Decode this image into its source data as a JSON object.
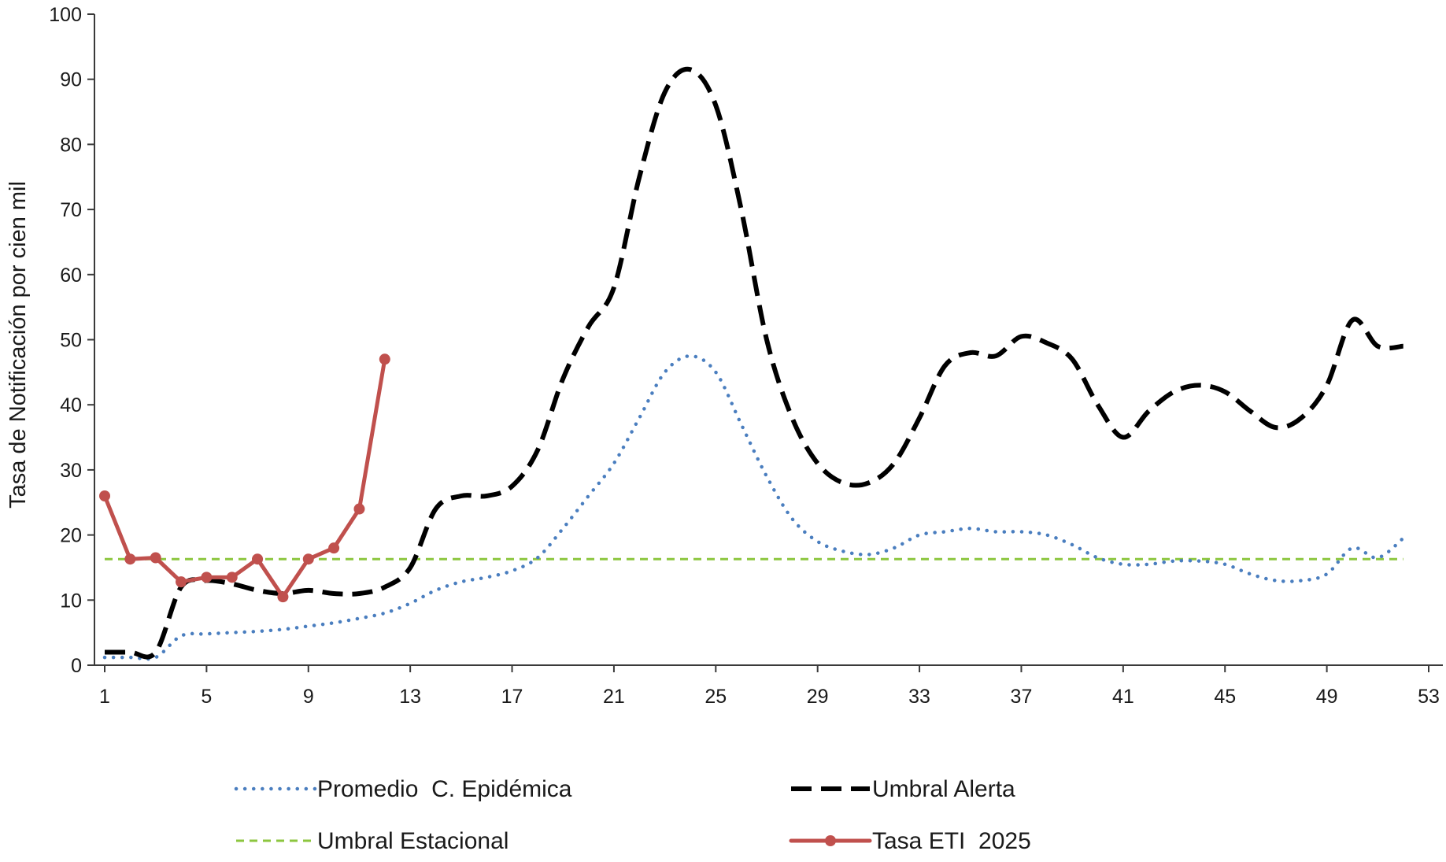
{
  "chart_data": {
    "type": "line",
    "title": "",
    "xlabel": "",
    "ylabel": "Tasa de Notificación por cien mil",
    "ylim": [
      0,
      100
    ],
    "xlim": [
      1,
      53
    ],
    "yticks": [
      0,
      10,
      20,
      30,
      40,
      50,
      60,
      70,
      80,
      90,
      100
    ],
    "xticks": [
      1,
      5,
      9,
      13,
      17,
      21,
      25,
      29,
      33,
      37,
      41,
      45,
      49,
      53
    ],
    "grid": false,
    "legend_position": "bottom",
    "series": [
      {
        "name": "Promedio  C. Epidémica",
        "color": "#4a7ebf",
        "style": "dotted",
        "x": [
          1,
          2,
          3,
          4,
          5,
          6,
          7,
          8,
          9,
          10,
          11,
          12,
          13,
          14,
          15,
          16,
          17,
          18,
          19,
          20,
          21,
          22,
          23,
          24,
          25,
          26,
          27,
          28,
          29,
          30,
          31,
          32,
          33,
          34,
          35,
          36,
          37,
          38,
          39,
          40,
          41,
          42,
          43,
          44,
          45,
          46,
          47,
          48,
          49,
          50,
          51,
          52
        ],
        "y": [
          1.2,
          1.2,
          1.2,
          4.5,
          4.8,
          5,
          5.2,
          5.5,
          6,
          6.5,
          7.2,
          8,
          9.5,
          11.5,
          12.8,
          13.5,
          14.5,
          16.5,
          21,
          26,
          31,
          38,
          45,
          47.5,
          45,
          37,
          29,
          22.5,
          19,
          17.5,
          17,
          18,
          20,
          20.5,
          21,
          20.5,
          20.5,
          20,
          18.5,
          16.5,
          15.5,
          15.5,
          16,
          16,
          15.5,
          14,
          13,
          13,
          14,
          18,
          16.5,
          19.5
        ]
      },
      {
        "name": "Umbral Alerta",
        "color": "#000000",
        "style": "dashed",
        "x": [
          1,
          2,
          3,
          4,
          5,
          6,
          7,
          8,
          9,
          10,
          11,
          12,
          13,
          14,
          15,
          16,
          17,
          18,
          19,
          20,
          21,
          22,
          23,
          24,
          25,
          26,
          27,
          28,
          29,
          30,
          31,
          32,
          33,
          34,
          35,
          36,
          37,
          38,
          39,
          40,
          41,
          42,
          43,
          44,
          45,
          46,
          47,
          48,
          49,
          50,
          51,
          52
        ],
        "y": [
          2,
          2,
          2,
          12,
          13,
          12.5,
          11.5,
          11,
          11.5,
          11,
          11,
          12,
          15,
          24,
          26,
          26,
          27.5,
          33,
          44,
          52,
          58,
          75,
          88,
          91.5,
          86,
          70,
          50,
          38,
          31,
          28,
          28,
          31,
          38,
          46,
          48,
          47.5,
          50.5,
          49.5,
          47,
          40,
          35,
          39,
          42,
          43,
          42,
          39,
          36.5,
          38,
          43,
          53,
          49,
          49
        ]
      },
      {
        "name": "Umbral Estacional",
        "color": "#8cc63f",
        "style": "dashed",
        "x": [
          1,
          52
        ],
        "y": [
          16.3,
          16.3
        ]
      },
      {
        "name": "Tasa ETI  2025",
        "color": "#c0504d",
        "style": "solid-marker",
        "x": [
          1,
          2,
          3,
          4,
          5,
          6,
          7,
          8,
          9,
          10,
          11,
          12
        ],
        "y": [
          26,
          16.3,
          16.5,
          12.8,
          13.5,
          13.5,
          16.3,
          10.5,
          16.3,
          18,
          24,
          47
        ]
      }
    ]
  }
}
